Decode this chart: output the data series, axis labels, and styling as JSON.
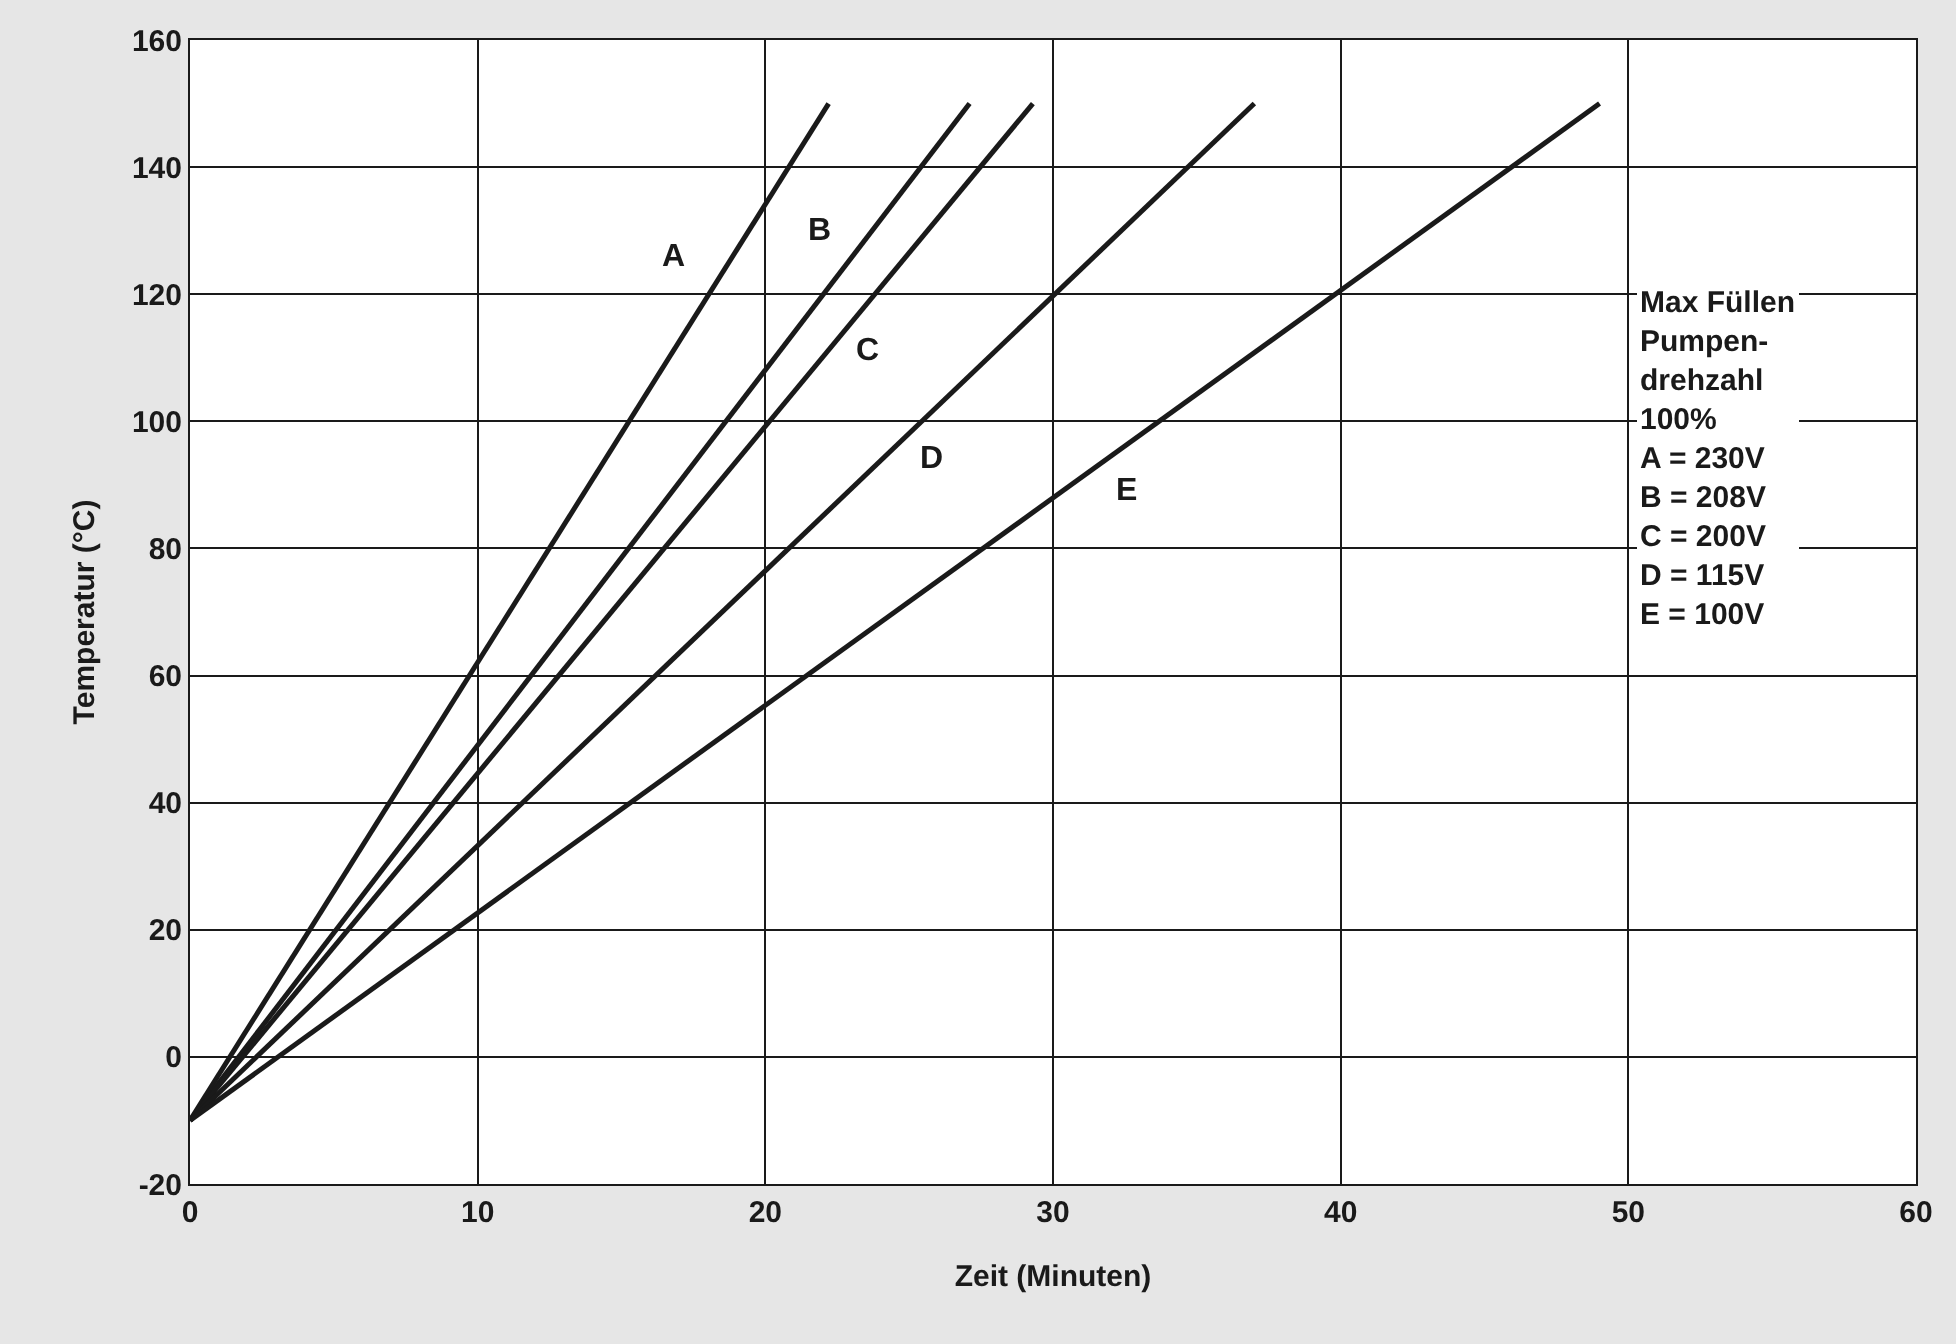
{
  "chart_data": {
    "type": "line",
    "xlabel": "Zeit (Minuten)",
    "ylabel": "Temperatur (°C)",
    "xlim": [
      0,
      60
    ],
    "xticks": [
      0,
      10,
      20,
      30,
      40,
      50,
      60
    ],
    "ylim": [
      -20,
      160
    ],
    "yticks": [
      -20,
      0,
      20,
      40,
      60,
      80,
      100,
      120,
      140,
      160
    ],
    "grid": true,
    "marker": "none",
    "line_style": "solid",
    "series": [
      {
        "color": "#1a1a1a",
        "x": [
          0,
          22.2
        ],
        "values": [
          -10,
          150
        ]
      },
      {
        "color": "#1a1a1a",
        "x": [
          0,
          27.1
        ],
        "values": [
          -10,
          150
        ]
      },
      {
        "color": "#1a1a1a",
        "x": [
          0,
          29.3
        ],
        "values": [
          -10,
          150
        ]
      },
      {
        "color": "#1a1a1a",
        "x": [
          0,
          37
        ],
        "values": [
          -10,
          150
        ]
      },
      {
        "color": "#1a1a1a",
        "x": [
          0,
          49
        ],
        "values": [
          -10,
          150
        ]
      }
    ],
    "annotations": [
      {
        "text": "A",
        "x": 16.8,
        "y": 126
      },
      {
        "text": "B",
        "x": 21.9,
        "y": 130
      },
      {
        "text": "C",
        "x": 23.6,
        "y": 111
      },
      {
        "text": "D",
        "x": 25.8,
        "y": 94
      },
      {
        "text": "E",
        "x": 32.6,
        "y": 89
      },
      "Max Füllen\nPumpen-\ndrehzahl\n100%\nA = 230V\nB = 208V\nC = 200V\nD = 115V\nE = 100V"
    ]
  }
}
